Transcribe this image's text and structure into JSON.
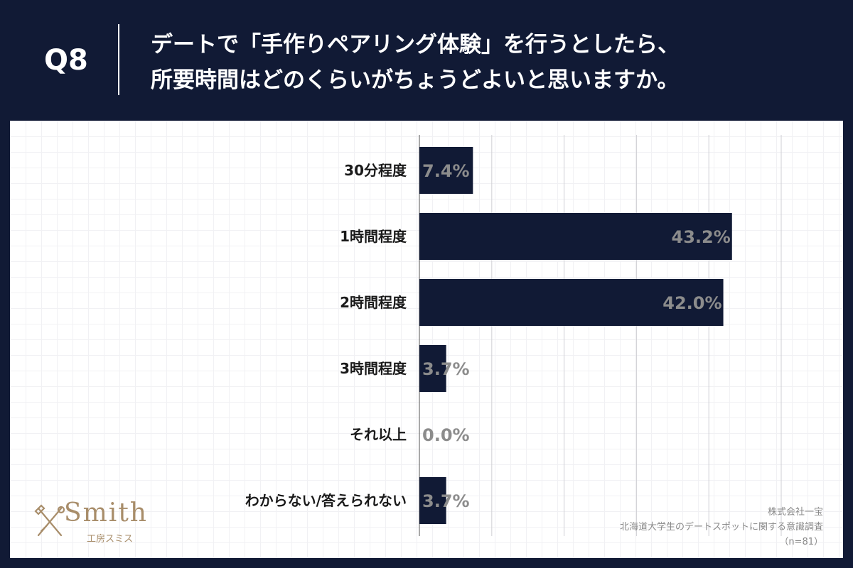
{
  "header": {
    "question_no": "Q8",
    "question_line1": "デートで「手作りペアリング体験」を行うとしたら、",
    "question_line2": "所要時間はどのくらいがちょうどよいと思いますか。"
  },
  "chart_data": {
    "type": "bar",
    "orientation": "horizontal",
    "categories": [
      "30分程度",
      "1時間程度",
      "2時間程度",
      "3時間程度",
      "それ以上",
      "わからない/答えられない"
    ],
    "values": [
      7.4,
      43.2,
      42.0,
      3.7,
      0.0,
      3.7
    ],
    "value_labels": [
      "7.4%",
      "43.2%",
      "42.0%",
      "3.7%",
      "0.0%",
      "3.7%"
    ],
    "xlim": [
      0,
      50
    ],
    "grid": true,
    "bar_color": "#111a35",
    "label_color": "#8c8c8c"
  },
  "credit": {
    "company": "株式会社一宝",
    "survey": "北海道大学生のデートスポットに関する意識調査",
    "sample": "（n=81）"
  },
  "logo": {
    "name": "Smith",
    "sub": "工房スミス",
    "icon": "crossed-tools-icon",
    "color": "#a88d6a"
  }
}
